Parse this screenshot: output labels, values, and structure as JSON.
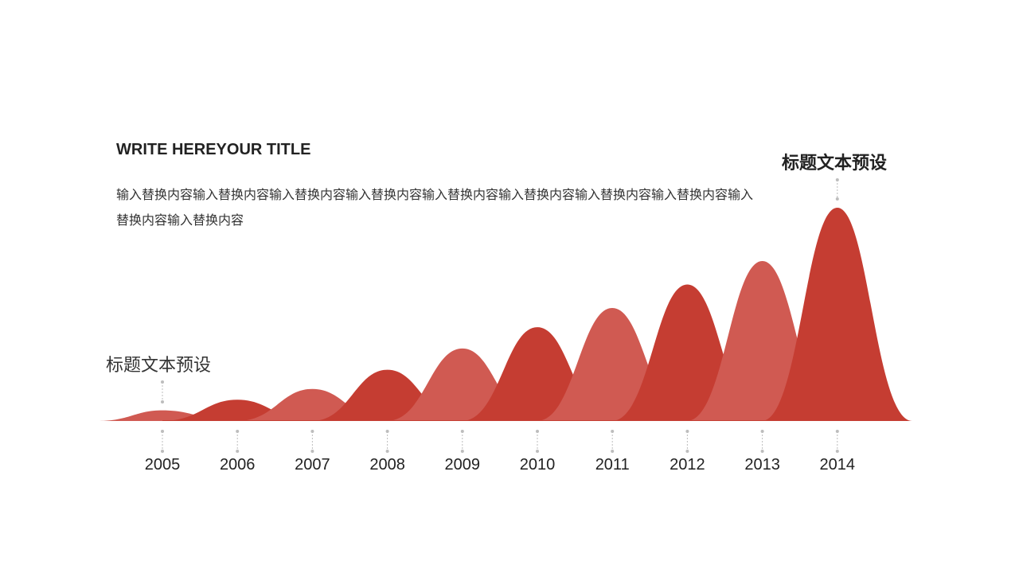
{
  "slide": {
    "title": "WRITE HEREYOUR TITLE",
    "body": "输入替换内容输入替换内容输入替换内容输入替换内容输入替换内容输入替换内容输入替换内容输入替换内容输入替换内容输入替换内容",
    "label_left": "标题文本预设",
    "label_right": "标题文本预设"
  },
  "colors": {
    "dark_red": "#c53d32",
    "light_red": "#d05a52",
    "leader_line": "#bdbdbd",
    "text": "#222222"
  },
  "chart_data": {
    "type": "area",
    "categories": [
      "2005",
      "2006",
      "2007",
      "2008",
      "2009",
      "2010",
      "2011",
      "2012",
      "2013",
      "2014"
    ],
    "values": [
      0.05,
      0.1,
      0.15,
      0.24,
      0.34,
      0.44,
      0.53,
      0.64,
      0.75,
      1.0
    ],
    "ylim": [
      0,
      1
    ],
    "grid": false,
    "legend": "none"
  }
}
